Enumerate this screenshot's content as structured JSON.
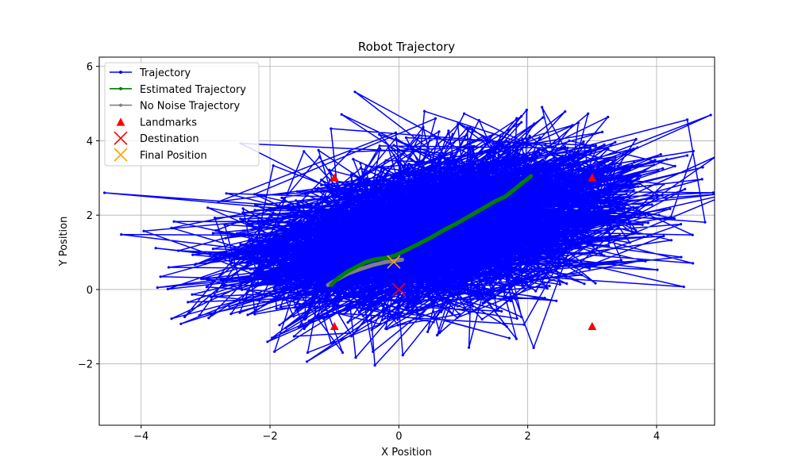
{
  "chart_data": {
    "type": "line",
    "title": "Robot Trajectory",
    "xlabel": "X Position",
    "ylabel": "Y Position",
    "xlim": [
      -4.65,
      4.9
    ],
    "ylim": [
      -3.65,
      6.25
    ],
    "xticks": [
      -4,
      -2,
      0,
      2,
      4
    ],
    "yticks": [
      -2,
      0,
      2,
      4,
      6
    ],
    "xtick_labels": [
      "−4",
      "−2",
      "0",
      "2",
      "4"
    ],
    "ytick_labels": [
      "−2",
      "0",
      "2",
      "4",
      "6"
    ],
    "grid": true,
    "legend_position": "top-left",
    "series": [
      {
        "name": "Trajectory",
        "kind": "line-markers",
        "color": "#0000ff",
        "note_values": "dense noisy path scattered around the true path; approximated by random samples",
        "generation": {
          "count": 2200,
          "seed": 7,
          "line_start": [
            -1.1,
            0.1
          ],
          "line_end": [
            2.1,
            3.1
          ],
          "sigma_x": 1.25,
          "sigma_y": 0.85
        }
      },
      {
        "name": "Estimated Trajectory",
        "kind": "line-markers",
        "color": "#008000",
        "x": [
          -1.05,
          -0.95,
          -0.8,
          -0.65,
          -0.5,
          -0.35,
          -0.2,
          -0.05,
          0.1,
          0.3,
          0.5,
          0.7,
          0.9,
          1.1,
          1.3,
          1.5,
          1.65,
          1.8,
          1.9,
          2.0,
          2.05
        ],
        "y": [
          0.12,
          0.3,
          0.48,
          0.62,
          0.75,
          0.82,
          0.85,
          0.92,
          1.05,
          1.22,
          1.4,
          1.6,
          1.78,
          1.98,
          2.18,
          2.38,
          2.5,
          2.7,
          2.85,
          2.98,
          3.05
        ]
      },
      {
        "name": "No Noise Trajectory",
        "kind": "line-markers",
        "color": "#808080",
        "x": [
          -1.1,
          -0.95,
          -0.8,
          -0.6,
          -0.4,
          -0.2,
          0.0,
          0.05,
          0.0
        ],
        "y": [
          0.12,
          0.28,
          0.42,
          0.55,
          0.66,
          0.74,
          0.79,
          0.8,
          0.8
        ]
      },
      {
        "name": "Landmarks",
        "kind": "scatter-triangle",
        "color": "#ff0000",
        "x": [
          -1,
          3,
          -1,
          3
        ],
        "y": [
          3,
          3,
          -1,
          -1
        ]
      },
      {
        "name": "Destination",
        "kind": "scatter-x",
        "color": "#ff0000",
        "x": [
          0
        ],
        "y": [
          0
        ]
      },
      {
        "name": "Final Position",
        "kind": "scatter-x",
        "color": "#ffa500",
        "x": [
          -0.08
        ],
        "y": [
          0.74
        ]
      }
    ]
  }
}
